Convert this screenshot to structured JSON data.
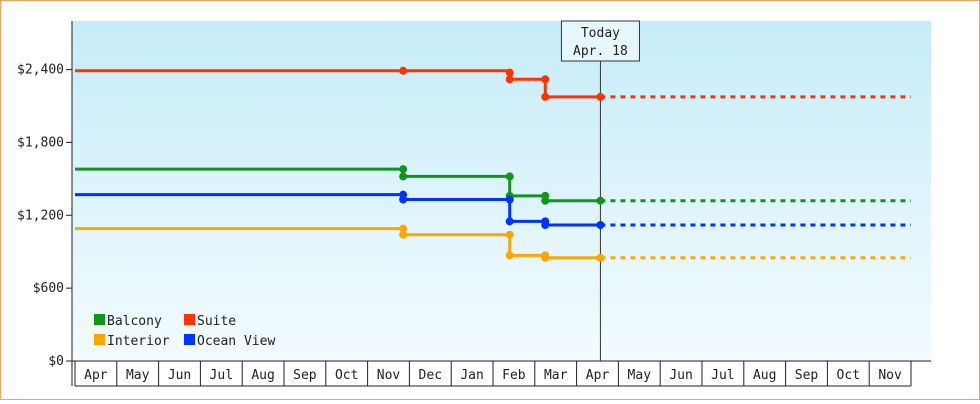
{
  "chart_data": {
    "type": "line",
    "step": true,
    "x_unit": "months since first Apr",
    "xlim": [
      0,
      20
    ],
    "ylim": [
      0,
      2800
    ],
    "y_ticks": [
      0,
      600,
      1200,
      1800,
      2400
    ],
    "y_tick_labels": [
      "$0",
      "$600",
      "$1,200",
      "$1,800",
      "$2,400"
    ],
    "x_tick_labels": [
      "Apr",
      "May",
      "Jun",
      "Jul",
      "Aug",
      "Sep",
      "Oct",
      "Nov",
      "Dec",
      "Jan",
      "Feb",
      "Mar",
      "Apr",
      "May",
      "Jun",
      "Jul",
      "Aug",
      "Sep",
      "Oct",
      "Nov"
    ],
    "today": {
      "x": 12.57,
      "line1": "Today",
      "line2": "Apr. 18"
    },
    "projection_end_x": 20,
    "legend_position": "bottom-left",
    "grid": false,
    "series": [
      {
        "name": "Suite",
        "color": "#ff3300",
        "points": [
          [
            0,
            2390
          ],
          [
            7.85,
            2390
          ],
          [
            10.4,
            2375
          ],
          [
            10.4,
            2320
          ],
          [
            11.25,
            2320
          ],
          [
            11.25,
            2175
          ],
          [
            12.57,
            2175
          ]
        ]
      },
      {
        "name": "Balcony",
        "color": "#109618",
        "points": [
          [
            0,
            1580
          ],
          [
            7.85,
            1580
          ],
          [
            7.85,
            1520
          ],
          [
            10.4,
            1520
          ],
          [
            10.4,
            1360
          ],
          [
            11.25,
            1360
          ],
          [
            11.25,
            1320
          ],
          [
            12.57,
            1320
          ]
        ]
      },
      {
        "name": "Ocean View",
        "color": "#0033ff",
        "points": [
          [
            0,
            1370
          ],
          [
            7.85,
            1370
          ],
          [
            7.85,
            1330
          ],
          [
            10.4,
            1330
          ],
          [
            10.4,
            1150
          ],
          [
            11.25,
            1150
          ],
          [
            11.25,
            1120
          ],
          [
            12.57,
            1120
          ]
        ]
      },
      {
        "name": "Interior",
        "color": "#ffa500",
        "points": [
          [
            0,
            1090
          ],
          [
            7.85,
            1090
          ],
          [
            7.85,
            1040
          ],
          [
            10.4,
            1040
          ],
          [
            10.4,
            870
          ],
          [
            11.25,
            870
          ],
          [
            11.25,
            850
          ],
          [
            12.57,
            850
          ]
        ]
      }
    ],
    "legend": [
      {
        "name": "Balcony",
        "color": "#109618"
      },
      {
        "name": "Suite",
        "color": "#ff3300"
      },
      {
        "name": "Interior",
        "color": "#ffa500"
      },
      {
        "name": "Ocean View",
        "color": "#0033ff"
      }
    ]
  }
}
